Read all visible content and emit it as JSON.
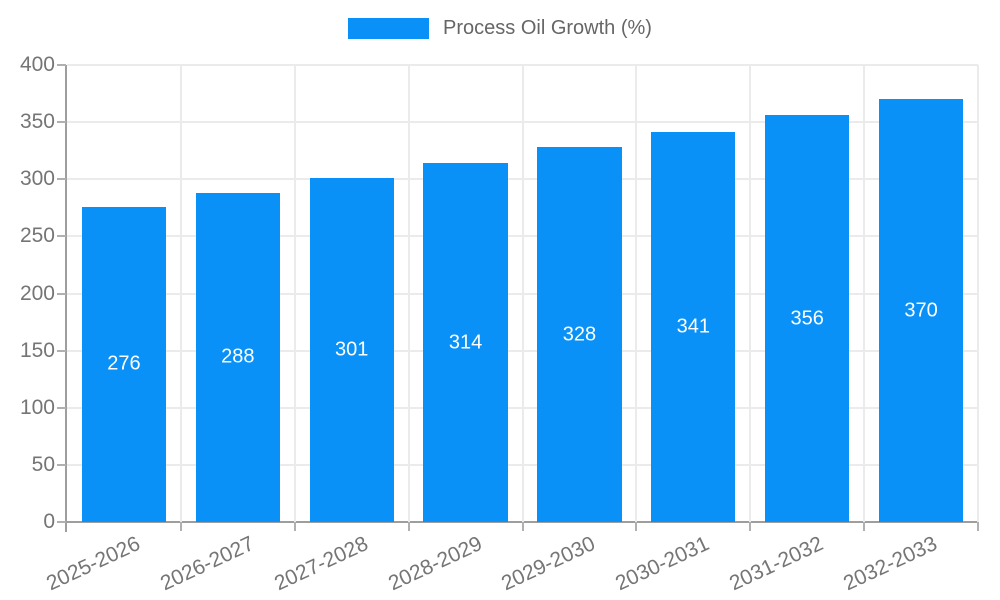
{
  "legend": {
    "label": "Process Oil Growth (%)"
  },
  "chart_data": {
    "type": "bar",
    "title": "",
    "series_name": "Process Oil Growth (%)",
    "categories": [
      "2025-2026",
      "2026-2027",
      "2027-2028",
      "2028-2029",
      "2029-2030",
      "2030-2031",
      "2031-2032",
      "2032-2033"
    ],
    "values": [
      276,
      288,
      301,
      314,
      328,
      341,
      356,
      370
    ],
    "value_labels": [
      "276",
      "288",
      "301",
      "314",
      "328",
      "341",
      "356",
      "370"
    ],
    "xlabel": "",
    "ylabel": "",
    "ylim": [
      0,
      400
    ],
    "yticks": [
      0,
      50,
      100,
      150,
      200,
      250,
      300,
      350,
      400
    ],
    "grid": true,
    "legend_position": "top-center",
    "colors": {
      "bar": "#0991f8",
      "value_label": "#ffffff",
      "axis": "#9e9e9e",
      "grid": "#ebebeb",
      "tick_label": "#757575",
      "legend_text": "#666666"
    }
  }
}
